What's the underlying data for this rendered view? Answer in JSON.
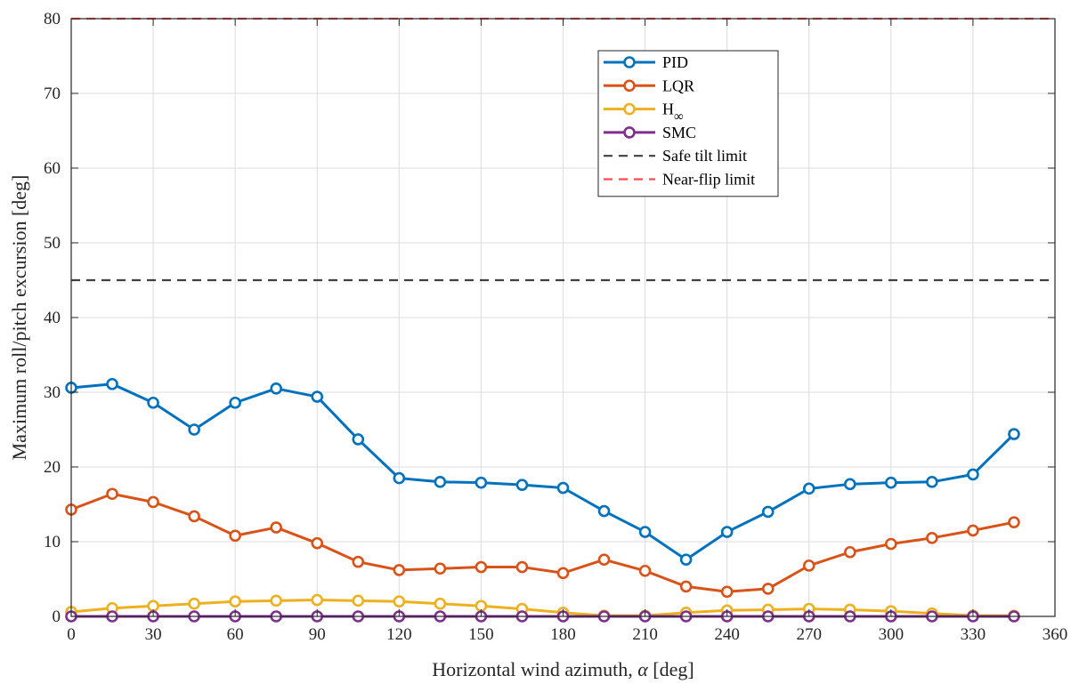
{
  "chart_data": {
    "type": "line",
    "title": "",
    "xlabel_main": "Horizontal wind azimuth, ",
    "xlabel_symbol": "α",
    "xlabel_unit": " [deg]",
    "ylabel": "Maximum roll/pitch excursion [deg]",
    "xlim": [
      0,
      360
    ],
    "ylim": [
      0,
      80
    ],
    "xticks": [
      0,
      30,
      60,
      90,
      120,
      150,
      180,
      210,
      240,
      270,
      300,
      330,
      360
    ],
    "yticks": [
      0,
      10,
      20,
      30,
      40,
      50,
      60,
      70,
      80
    ],
    "grid": true,
    "legend_position": "top-center",
    "x": [
      0,
      15,
      30,
      45,
      60,
      75,
      90,
      105,
      120,
      135,
      150,
      165,
      180,
      195,
      210,
      225,
      240,
      255,
      270,
      285,
      300,
      315,
      330,
      345
    ],
    "series": [
      {
        "name": "PID",
        "color": "#0072BD",
        "values": [
          30.6,
          31.1,
          28.6,
          25.0,
          28.6,
          30.5,
          29.4,
          23.7,
          18.5,
          18.0,
          17.9,
          17.6,
          17.2,
          14.1,
          11.3,
          7.6,
          11.3,
          14.0,
          17.1,
          17.7,
          17.9,
          18.0,
          19.0,
          24.4
        ]
      },
      {
        "name": "LQR",
        "color": "#D95319",
        "values": [
          14.3,
          16.4,
          15.3,
          13.4,
          10.8,
          11.9,
          9.8,
          7.3,
          6.2,
          6.4,
          6.6,
          6.6,
          5.8,
          7.6,
          6.1,
          4.0,
          3.3,
          3.7,
          6.8,
          8.6,
          9.7,
          10.5,
          11.5,
          12.6
        ]
      },
      {
        "name_base": "H",
        "name_sub": "∞",
        "color": "#EDB120",
        "values": [
          0.6,
          1.1,
          1.4,
          1.7,
          2.0,
          2.1,
          2.2,
          2.1,
          2.0,
          1.7,
          1.4,
          1.0,
          0.5,
          0.1,
          0.1,
          0.5,
          0.8,
          0.9,
          1.0,
          0.9,
          0.7,
          0.4,
          0.1,
          0.1
        ]
      },
      {
        "name": "SMC",
        "color": "#7E2F8E",
        "values": [
          0.0,
          0.0,
          0.0,
          0.0,
          0.0,
          0.0,
          0.0,
          0.0,
          0.0,
          0.0,
          0.0,
          0.0,
          0.0,
          0.0,
          0.0,
          0.0,
          0.0,
          0.0,
          0.0,
          0.0,
          0.0,
          0.0,
          0.0,
          0.0
        ]
      }
    ],
    "reference_lines": [
      {
        "name": "Safe tilt limit",
        "value": 45,
        "color": "#404040",
        "style": "dashed"
      },
      {
        "name": "Near-flip limit",
        "value": 80,
        "color": "#FF4D4D",
        "style": "dashed"
      }
    ]
  }
}
